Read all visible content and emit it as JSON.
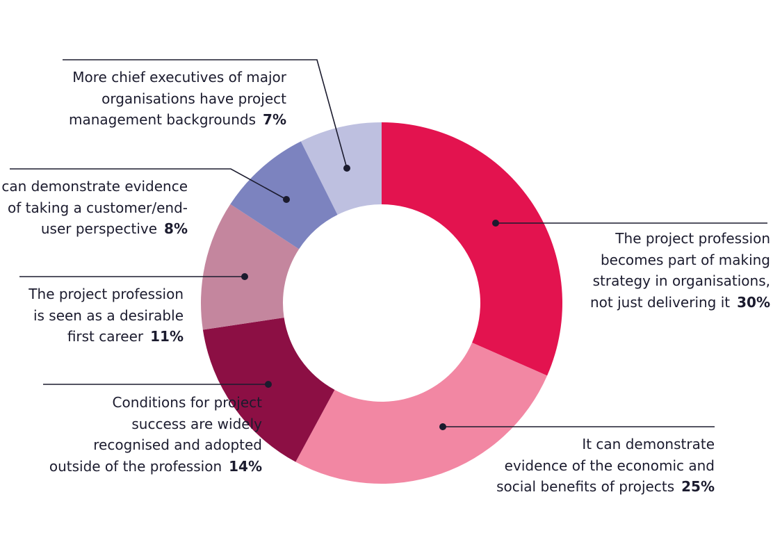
{
  "chart_data": {
    "type": "pie",
    "donut": true,
    "colors": [
      "#e3134f",
      "#f287a3",
      "#8c0f44",
      "#c4869e",
      "#7c83bf",
      "#bec0e0"
    ],
    "slices": [
      {
        "lines": [
          "The project profession",
          "becomes part of making",
          "strategy in organisations,",
          "not just delivering it"
        ],
        "value": 30,
        "value_label": "30%"
      },
      {
        "lines": [
          "It can demonstrate",
          "evidence of the economic and",
          "social benefits of projects"
        ],
        "value": 25,
        "value_label": "25%"
      },
      {
        "lines": [
          "Conditions for project",
          "success are widely",
          "recognised and adopted",
          "outside of the profession"
        ],
        "value": 14,
        "value_label": "14%"
      },
      {
        "lines": [
          "The project profession",
          "is seen as a desirable",
          "first career"
        ],
        "value": 11,
        "value_label": "11%"
      },
      {
        "lines": [
          "It can demonstrate evidence",
          "of taking a customer/end-",
          "user perspective"
        ],
        "value": 8,
        "value_label": "8%"
      },
      {
        "lines": [
          "More chief executives of major",
          "organisations have project",
          "management backgrounds"
        ],
        "value": 7,
        "value_label": "7%"
      }
    ]
  }
}
